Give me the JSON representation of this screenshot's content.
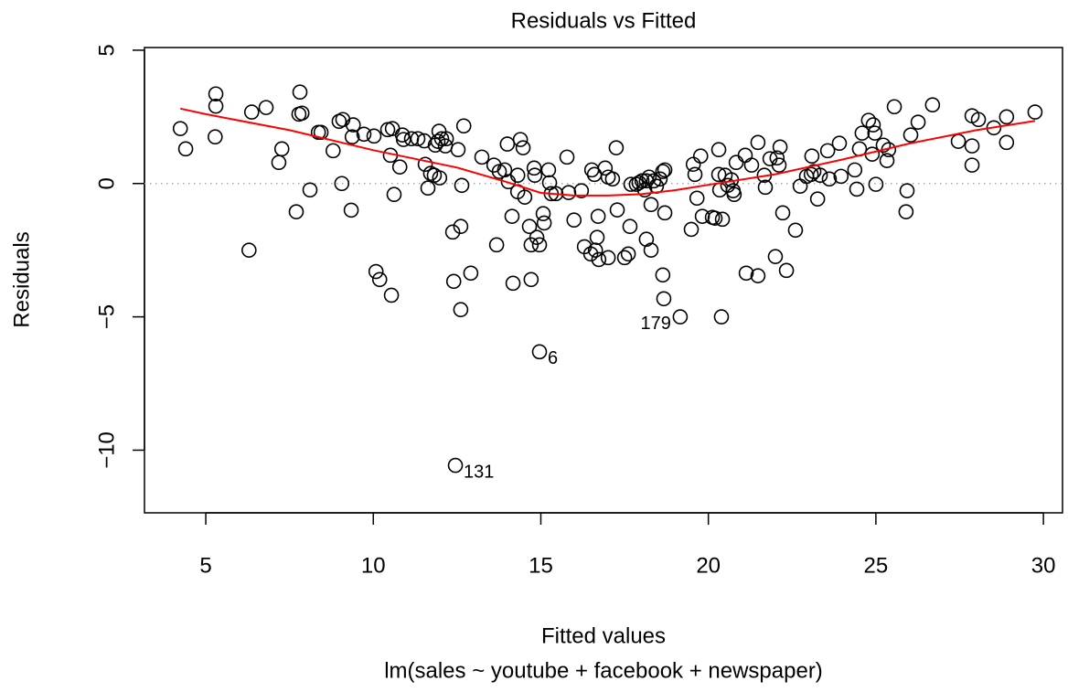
{
  "chart_data": {
    "type": "scatter",
    "title": "Residuals vs Fitted",
    "x_label": "Fitted values",
    "subtitle": "lm(sales ~ youtube + facebook + newspaper)",
    "y_label": "Residuals",
    "xlim": [
      3.17,
      30.57
    ],
    "ylim": [
      -12.35,
      5.1
    ],
    "xticks": [
      5,
      10,
      15,
      20,
      25,
      30
    ],
    "yticks": [
      5,
      0,
      {
        "value": -5,
        "label": "−5"
      },
      {
        "value": -10,
        "label": "−10"
      }
    ],
    "reference_line": 0,
    "point_color": "#000000",
    "points": [
      {
        "x": 4.24,
        "y": 2.06
      },
      {
        "x": 4.4,
        "y": 1.3
      },
      {
        "x": 5.3,
        "y": 3.36
      },
      {
        "x": 5.3,
        "y": 2.9
      },
      {
        "x": 5.28,
        "y": 1.75
      },
      {
        "x": 6.29,
        "y": -2.5
      },
      {
        "x": 6.37,
        "y": 2.68
      },
      {
        "x": 6.8,
        "y": 2.85
      },
      {
        "x": 7.18,
        "y": 0.79
      },
      {
        "x": 7.27,
        "y": 1.3
      },
      {
        "x": 7.7,
        "y": -1.06
      },
      {
        "x": 7.81,
        "y": 3.43
      },
      {
        "x": 7.78,
        "y": 2.6
      },
      {
        "x": 7.87,
        "y": 2.64
      },
      {
        "x": 8.11,
        "y": -0.24
      },
      {
        "x": 8.36,
        "y": 1.92
      },
      {
        "x": 8.44,
        "y": 1.92
      },
      {
        "x": 8.8,
        "y": 1.23
      },
      {
        "x": 8.98,
        "y": 2.33
      },
      {
        "x": 9.09,
        "y": 2.4
      },
      {
        "x": 9.06,
        "y": 0
      },
      {
        "x": 9.34,
        "y": -1
      },
      {
        "x": 9.37,
        "y": 1.75
      },
      {
        "x": 9.4,
        "y": 2.2
      },
      {
        "x": 9.72,
        "y": 1.85
      },
      {
        "x": 10.02,
        "y": 1.78
      },
      {
        "x": 10.08,
        "y": -3.3
      },
      {
        "x": 10.19,
        "y": -3.6
      },
      {
        "x": 10.43,
        "y": 2.02
      },
      {
        "x": 10.57,
        "y": 2.06
      },
      {
        "x": 10.51,
        "y": 1.06
      },
      {
        "x": 10.54,
        "y": -4.19
      },
      {
        "x": 10.62,
        "y": -0.41
      },
      {
        "x": 10.79,
        "y": 0.62
      },
      {
        "x": 10.87,
        "y": 1.82
      },
      {
        "x": 10.9,
        "y": 1.65
      },
      {
        "x": 11.14,
        "y": 1.68
      },
      {
        "x": 11.33,
        "y": 1.68
      },
      {
        "x": 11.52,
        "y": 1.6
      },
      {
        "x": 11.55,
        "y": 0.72
      },
      {
        "x": 11.63,
        "y": -0.17
      },
      {
        "x": 11.71,
        "y": 0.38
      },
      {
        "x": 11.85,
        "y": 1.44
      },
      {
        "x": 11.82,
        "y": 0.31
      },
      {
        "x": 11.93,
        "y": 1.58
      },
      {
        "x": 11.98,
        "y": 0.21
      },
      {
        "x": 11.96,
        "y": 1.96
      },
      {
        "x": 12.04,
        "y": 1.68
      },
      {
        "x": 12.15,
        "y": 1.41
      },
      {
        "x": 12.18,
        "y": 1.68
      },
      {
        "x": 12.37,
        "y": -1.82
      },
      {
        "x": 12.4,
        "y": -3.67
      },
      {
        "x": 12.45,
        "y": -10.57,
        "label": "131"
      },
      {
        "x": 12.53,
        "y": 1.27
      },
      {
        "x": 12.64,
        "y": -0.07
      },
      {
        "x": 12.61,
        "y": -1.61
      },
      {
        "x": 12.61,
        "y": -4.73
      },
      {
        "x": 12.7,
        "y": 2.16
      },
      {
        "x": 12.91,
        "y": -3.36
      },
      {
        "x": 13.24,
        "y": 0.99
      },
      {
        "x": 13.6,
        "y": 0.69
      },
      {
        "x": 13.68,
        "y": -2.3
      },
      {
        "x": 13.76,
        "y": 0.45
      },
      {
        "x": 13.92,
        "y": 0.51
      },
      {
        "x": 14.0,
        "y": 1.48
      },
      {
        "x": 14.03,
        "y": 0.07
      },
      {
        "x": 14.14,
        "y": -1.23
      },
      {
        "x": 14.17,
        "y": -3.74
      },
      {
        "x": 14.31,
        "y": 0.31
      },
      {
        "x": 14.31,
        "y": -0.31
      },
      {
        "x": 14.39,
        "y": 1.65
      },
      {
        "x": 14.47,
        "y": 1.34
      },
      {
        "x": 14.52,
        "y": -0.51
      },
      {
        "x": 14.66,
        "y": -1.61
      },
      {
        "x": 14.71,
        "y": -2.3
      },
      {
        "x": 14.71,
        "y": -3.6
      },
      {
        "x": 14.8,
        "y": 0.58
      },
      {
        "x": 14.82,
        "y": 0.31
      },
      {
        "x": 14.88,
        "y": -2.02
      },
      {
        "x": 14.96,
        "y": -2.3
      },
      {
        "x": 14.96,
        "y": -6.31,
        "label": "6"
      },
      {
        "x": 15.07,
        "y": -1.13
      },
      {
        "x": 15.1,
        "y": -1.48
      },
      {
        "x": 15.23,
        "y": 0.51
      },
      {
        "x": 15.26,
        "y": 0.03
      },
      {
        "x": 15.31,
        "y": -0.38
      },
      {
        "x": 15.45,
        "y": -0.38
      },
      {
        "x": 15.78,
        "y": 0.99
      },
      {
        "x": 15.83,
        "y": -0.34
      },
      {
        "x": 15.99,
        "y": -1.37
      },
      {
        "x": 16.21,
        "y": -0.27
      },
      {
        "x": 16.3,
        "y": -2.37
      },
      {
        "x": 16.49,
        "y": -2.64
      },
      {
        "x": 16.52,
        "y": 0.51
      },
      {
        "x": 16.6,
        "y": 0.34
      },
      {
        "x": 16.63,
        "y": -2.5
      },
      {
        "x": 16.68,
        "y": -2.02
      },
      {
        "x": 16.71,
        "y": -1.23
      },
      {
        "x": 16.73,
        "y": -2.85
      },
      {
        "x": 16.92,
        "y": 0.58
      },
      {
        "x": 17.01,
        "y": 0.24
      },
      {
        "x": 17.01,
        "y": -2.78
      },
      {
        "x": 17.14,
        "y": 0.17
      },
      {
        "x": 17.25,
        "y": 1.34
      },
      {
        "x": 17.28,
        "y": -0.99
      },
      {
        "x": 17.5,
        "y": -2.78
      },
      {
        "x": 17.61,
        "y": -2.64
      },
      {
        "x": 17.66,
        "y": -1.61
      },
      {
        "x": 17.69,
        "y": -0.03
      },
      {
        "x": 17.85,
        "y": -0.03
      },
      {
        "x": 17.93,
        "y": 0.03
      },
      {
        "x": 18.02,
        "y": 0.1
      },
      {
        "x": 18.1,
        "y": -0.24
      },
      {
        "x": 18.15,
        "y": -2.09
      },
      {
        "x": 18.15,
        "y": 0.1
      },
      {
        "x": 18.23,
        "y": 0.24
      },
      {
        "x": 18.29,
        "y": -0.79
      },
      {
        "x": 18.29,
        "y": -2.5
      },
      {
        "x": 18.37,
        "y": 0.1
      },
      {
        "x": 18.45,
        "y": -0.1
      },
      {
        "x": 18.56,
        "y": 0.17
      },
      {
        "x": 18.64,
        "y": 0.45
      },
      {
        "x": 18.64,
        "y": -3.43
      },
      {
        "x": 18.67,
        "y": -4.32
      },
      {
        "x": 18.7,
        "y": 0.51
      },
      {
        "x": 18.7,
        "y": -1.1
      },
      {
        "x": 19.16,
        "y": -5.0,
        "label": "179"
      },
      {
        "x": 19.49,
        "y": -1.72
      },
      {
        "x": 19.55,
        "y": 0.72
      },
      {
        "x": 19.6,
        "y": 0.34
      },
      {
        "x": 19.66,
        "y": -0.55
      },
      {
        "x": 19.77,
        "y": 1.03
      },
      {
        "x": 19.82,
        "y": -1.23
      },
      {
        "x": 20.12,
        "y": -1.27
      },
      {
        "x": 20.2,
        "y": -1.3
      },
      {
        "x": 20.31,
        "y": 1.27
      },
      {
        "x": 20.31,
        "y": 0.34
      },
      {
        "x": 20.34,
        "y": -0.24
      },
      {
        "x": 20.42,
        "y": -1.34
      },
      {
        "x": 20.39,
        "y": -5.0
      },
      {
        "x": 20.5,
        "y": 0.31
      },
      {
        "x": 20.58,
        "y": -0.07
      },
      {
        "x": 20.69,
        "y": 0.14
      },
      {
        "x": 20.74,
        "y": -0.27
      },
      {
        "x": 20.77,
        "y": -0.41
      },
      {
        "x": 20.83,
        "y": 0.79
      },
      {
        "x": 21.13,
        "y": -3.36
      },
      {
        "x": 21.1,
        "y": 1.06
      },
      {
        "x": 21.29,
        "y": 0.69
      },
      {
        "x": 21.48,
        "y": 1.54
      },
      {
        "x": 21.48,
        "y": -3.46
      },
      {
        "x": 21.67,
        "y": 0.31
      },
      {
        "x": 21.7,
        "y": -0.14
      },
      {
        "x": 21.84,
        "y": 0.93
      },
      {
        "x": 22.0,
        "y": -2.74
      },
      {
        "x": 22.05,
        "y": 0.96
      },
      {
        "x": 22.11,
        "y": 0.69
      },
      {
        "x": 22.14,
        "y": 1.37
      },
      {
        "x": 22.22,
        "y": -1.1
      },
      {
        "x": 22.33,
        "y": -3.26
      },
      {
        "x": 22.6,
        "y": -1.75
      },
      {
        "x": 22.74,
        "y": -0.1
      },
      {
        "x": 22.93,
        "y": 0.27
      },
      {
        "x": 23.07,
        "y": 0.34
      },
      {
        "x": 23.09,
        "y": 1.03
      },
      {
        "x": 23.15,
        "y": 0.45
      },
      {
        "x": 23.26,
        "y": -0.58
      },
      {
        "x": 23.34,
        "y": 0.31
      },
      {
        "x": 23.56,
        "y": 1.23
      },
      {
        "x": 23.61,
        "y": 0.17
      },
      {
        "x": 23.91,
        "y": 1.51
      },
      {
        "x": 23.96,
        "y": 0.27
      },
      {
        "x": 24.37,
        "y": 0.51
      },
      {
        "x": 24.43,
        "y": -0.21
      },
      {
        "x": 24.51,
        "y": 1.3
      },
      {
        "x": 24.59,
        "y": 1.89
      },
      {
        "x": 24.78,
        "y": 2.37
      },
      {
        "x": 24.89,
        "y": 1.1
      },
      {
        "x": 24.92,
        "y": 2.2
      },
      {
        "x": 24.97,
        "y": 1.89
      },
      {
        "x": 25.0,
        "y": -0.03
      },
      {
        "x": 25.22,
        "y": 1.44
      },
      {
        "x": 25.33,
        "y": 0.86
      },
      {
        "x": 25.38,
        "y": 1.27
      },
      {
        "x": 25.55,
        "y": 2.88
      },
      {
        "x": 26.04,
        "y": 1.82
      },
      {
        "x": 25.93,
        "y": -0.27
      },
      {
        "x": 25.9,
        "y": -1.06
      },
      {
        "x": 26.26,
        "y": 2.3
      },
      {
        "x": 26.69,
        "y": 2.95
      },
      {
        "x": 27.46,
        "y": 1.58
      },
      {
        "x": 27.87,
        "y": 2.54
      },
      {
        "x": 27.87,
        "y": 1.41
      },
      {
        "x": 27.87,
        "y": 0.69
      },
      {
        "x": 28.06,
        "y": 2.4
      },
      {
        "x": 28.52,
        "y": 2.09
      },
      {
        "x": 28.9,
        "y": 2.5
      },
      {
        "x": 28.9,
        "y": 1.54
      },
      {
        "x": 29.75,
        "y": 2.68
      }
    ],
    "smooth": {
      "color": "#ff0000",
      "x": [
        4.24,
        5,
        7.5,
        10,
        12.5,
        14,
        15,
        16,
        17,
        18,
        19,
        20,
        22,
        24,
        26,
        28,
        29.75
      ],
      "y": [
        2.81,
        2.6,
        2.0,
        1.25,
        0.6,
        0.05,
        -0.35,
        -0.45,
        -0.45,
        -0.4,
        -0.25,
        -0.05,
        0.35,
        0.9,
        1.5,
        2.0,
        2.35
      ]
    }
  }
}
